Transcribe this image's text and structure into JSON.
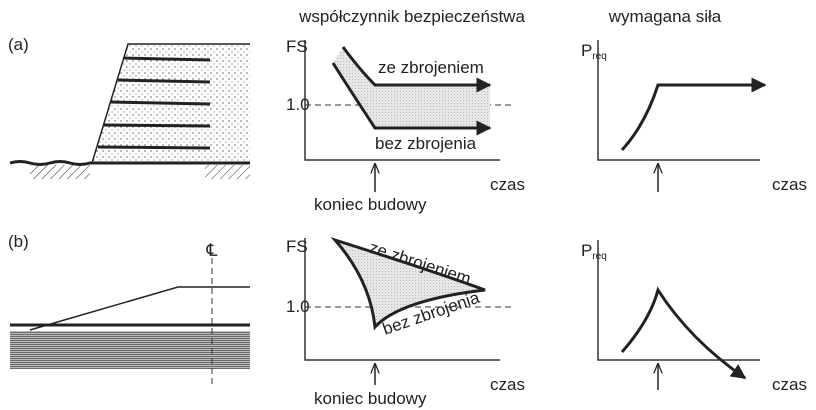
{
  "headers": {
    "fs": "współczynnik bezpieczeństwa",
    "preq": "wymagana siła"
  },
  "rows": [
    {
      "label": "(a)",
      "fs_axis": "FS",
      "fs_ref": "1.0",
      "upper": "ze zbrojeniem",
      "lower": "bez zbrojenia",
      "x_axis": "czas",
      "event": "koniec budowy",
      "p_axis": {
        "main": "P",
        "sub": "req"
      },
      "p_x_axis": "czas"
    },
    {
      "label": "(b)",
      "centerline": "℄",
      "fs_axis": "FS",
      "fs_ref": "1.0",
      "upper": "ze zbrojeniem",
      "lower": "bez zbrojenia",
      "x_axis": "czas",
      "event": "koniec budowy",
      "p_axis": {
        "main": "P",
        "sub": "req"
      },
      "p_x_axis": "czas"
    }
  ]
}
